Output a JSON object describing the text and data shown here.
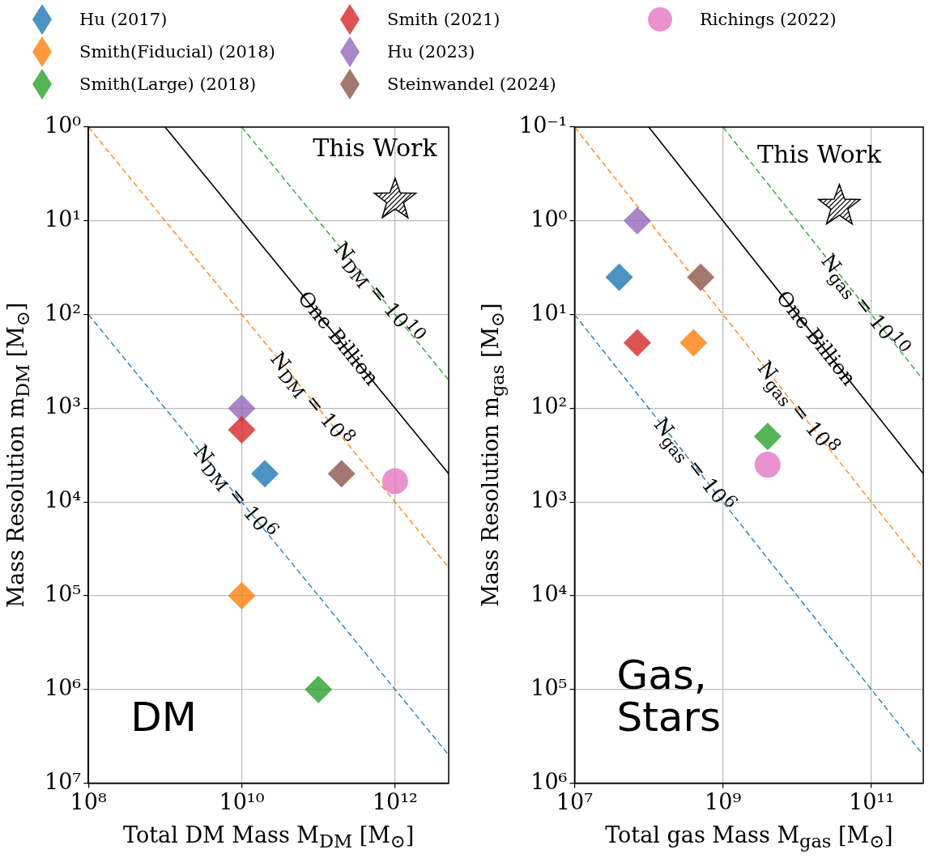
{
  "chart_data": [
    {
      "type": "scatter",
      "xlabel": "Total DM Mass M$_{DM}$  [M$_{⊙}$]",
      "ylabel": "Mass Resolution m$_{DM}$  [M$_{⊙}$]",
      "log": "xy",
      "grid": true,
      "legend": "top",
      "xlim": [
        100000000.0,
        5000000000000.0
      ],
      "xticks": [
        {
          "value": 100000000.0,
          "label": "10⁸"
        },
        {
          "value": 10000000000.0,
          "label": "10¹⁰"
        },
        {
          "value": 1000000000000.0,
          "label": "10¹²"
        }
      ],
      "ylim": [
        10000000.0,
        1
      ],
      "yticks": [
        {
          "value": 1,
          "label": "10⁰"
        },
        {
          "value": 10,
          "label": "10¹"
        },
        {
          "value": 100,
          "label": "10²"
        },
        {
          "value": 1000,
          "label": "10³"
        },
        {
          "value": 10000,
          "label": "10⁴"
        },
        {
          "value": 100000,
          "label": "10⁵"
        },
        {
          "value": 1000000,
          "label": "10⁶"
        },
        {
          "value": 10000000,
          "label": "10⁷"
        }
      ],
      "series": [
        {
          "name": "Hu (2017)",
          "color": "#1f77b4",
          "marker": "diamond",
          "x": [
            20000000000.0
          ],
          "values": [
            5000
          ]
        },
        {
          "name": "Smith(Fiducial) (2018)",
          "color": "#ff7f0e",
          "marker": "diamond",
          "x": [
            10000000000.0
          ],
          "values": [
            100000
          ]
        },
        {
          "name": "Smith(Large) (2018)",
          "color": "#2ca02c",
          "marker": "diamond",
          "x": [
            100000000000.0
          ],
          "values": [
            1000000
          ]
        },
        {
          "name": "Smith (2021)",
          "color": "#d62728",
          "marker": "diamond",
          "x": [
            10000000000.0
          ],
          "values": [
            1700
          ]
        },
        {
          "name": "Hu (2023)",
          "color": "#9467bd",
          "marker": "diamond",
          "x": [
            10000000000.0
          ],
          "values": [
            1000
          ]
        },
        {
          "name": "Steinwandel (2024)",
          "color": "#8c564b",
          "marker": "diamond",
          "x": [
            200000000000.0
          ],
          "values": [
            5000
          ]
        },
        {
          "name": "Richings (2022)",
          "color": "#e377c2",
          "marker": "circle",
          "x": [
            1000000000000.0
          ],
          "values": [
            6000
          ]
        },
        {
          "color": "#000000",
          "marker": "star",
          "x": [
            1000000000000.0
          ],
          "values": [
            6
          ]
        },
        {
          "type": "line",
          "color": "#1f77b4",
          "line_style": "dashed",
          "x": [
            100000000.0,
            5000000000000.0
          ],
          "values": [
            100,
            5000000
          ]
        },
        {
          "type": "line",
          "color": "#ff7f0e",
          "line_style": "dashed",
          "x": [
            100000000.0,
            5000000000000.0
          ],
          "values": [
            1,
            50000
          ]
        },
        {
          "type": "line",
          "color": "#000000",
          "line_style": "solid",
          "x": [
            1000000000.0,
            5000000000000.0
          ],
          "values": [
            1,
            5000
          ]
        },
        {
          "type": "line",
          "color": "#2ca02c",
          "line_style": "dashed",
          "x": [
            10000000000.0,
            5000000000000.0
          ],
          "values": [
            1,
            500
          ]
        }
      ],
      "annotations": [
        {
          "text": "This Work",
          "x": 1000000000000.0,
          "y": 6
        },
        "DM",
        {
          "text": "N$_{DM}$ = 10$^{10}$",
          "x": 600000000000.0,
          "y": 60
        },
        {
          "text": "One Billion",
          "x": 180000000000.0,
          "y": 180
        },
        {
          "text": "N$_{DM}$ = 10$^{8}$",
          "x": 80000000000.0,
          "y": 800
        },
        {
          "text": "N$_{DM}$ = 10$^{6}$",
          "x": 8000000000.0,
          "y": 8000
        }
      ]
    },
    {
      "type": "scatter",
      "xlabel": "Total gas Mass M$_{gas}$  [M$_{⊙}$]",
      "ylabel": "Mass Resolution m$_{gas}$  [M$_{⊙}$]",
      "log": "xy",
      "grid": true,
      "xlim": [
        10000000.0,
        500000000000.0
      ],
      "xticks": [
        {
          "value": 10000000.0,
          "label": "10⁷"
        },
        {
          "value": 1000000000.0,
          "label": "10⁹"
        },
        {
          "value": 100000000000.0,
          "label": "10¹¹"
        }
      ],
      "ylim": [
        1000000.0,
        0.1
      ],
      "yticks": [
        {
          "value": 0.1,
          "label": "10⁻¹"
        },
        {
          "value": 1,
          "label": "10⁰"
        },
        {
          "value": 10,
          "label": "10¹"
        },
        {
          "value": 100,
          "label": "10²"
        },
        {
          "value": 1000,
          "label": "10³"
        },
        {
          "value": 10000,
          "label": "10⁴"
        },
        {
          "value": 100000,
          "label": "10⁵"
        },
        {
          "value": 1000000,
          "label": "10⁶"
        }
      ],
      "series": [
        {
          "color": "#1f77b4",
          "marker": "diamond",
          "x": [
            40000000.0
          ],
          "values": [
            4
          ]
        },
        {
          "color": "#ff7f0e",
          "marker": "diamond",
          "x": [
            400000000.0
          ],
          "values": [
            20
          ]
        },
        {
          "color": "#2ca02c",
          "marker": "diamond",
          "x": [
            4000000000.0
          ],
          "values": [
            200
          ]
        },
        {
          "color": "#d62728",
          "marker": "diamond",
          "x": [
            70000000.0
          ],
          "values": [
            20
          ]
        },
        {
          "color": "#9467bd",
          "marker": "diamond",
          "x": [
            70000000.0
          ],
          "values": [
            1
          ]
        },
        {
          "color": "#8c564b",
          "marker": "diamond",
          "x": [
            500000000.0
          ],
          "values": [
            4
          ]
        },
        {
          "color": "#e377c2",
          "marker": "circle",
          "x": [
            4000000000.0
          ],
          "values": [
            400
          ]
        },
        {
          "color": "#000000",
          "marker": "star",
          "x": [
            37000000000.0
          ],
          "values": [
            0.7
          ]
        },
        {
          "type": "line",
          "color": "#1f77b4",
          "line_style": "dashed",
          "x": [
            10000000.0,
            500000000000.0
          ],
          "values": [
            10,
            500000
          ]
        },
        {
          "type": "line",
          "color": "#ff7f0e",
          "line_style": "dashed",
          "x": [
            10000000.0,
            500000000000.0
          ],
          "values": [
            0.1,
            5000
          ]
        },
        {
          "type": "line",
          "color": "#000000",
          "line_style": "solid",
          "x": [
            100000000.0,
            500000000000.0
          ],
          "values": [
            0.1,
            500
          ]
        },
        {
          "type": "line",
          "color": "#2ca02c",
          "line_style": "dashed",
          "x": [
            1000000000.0,
            500000000000.0
          ],
          "values": [
            0.1,
            50
          ]
        }
      ],
      "annotations": [
        {
          "text": "This Work",
          "x": 37000000000.0,
          "y": 0.7
        },
        "Gas,\nStars",
        {
          "text": "N$_{gas}$ = 10$^{10}$",
          "x": 80000000000.0,
          "y": 8
        },
        {
          "text": "One Billion",
          "x": 18000000000.0,
          "y": 18
        },
        {
          "text": "N$_{gas}$ = 10$^{8}$",
          "x": 10000000000.0,
          "y": 100
        },
        {
          "text": "N$_{gas}$ = 10$^{6}$",
          "x": 400000000.0,
          "y": 400
        }
      ]
    }
  ]
}
